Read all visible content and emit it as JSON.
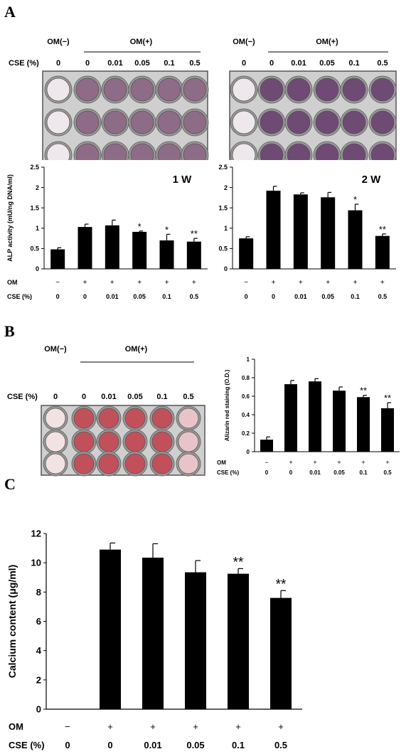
{
  "panels": {
    "a": "A",
    "b": "B",
    "c": "C"
  },
  "plate_header": {
    "om_minus": "OM(−)",
    "om_plus": "OM(+)",
    "cse_label": "CSE (%)",
    "cse_values": [
      "0",
      "0",
      "0.01",
      "0.05",
      "0.1",
      "0.5"
    ]
  },
  "plates": {
    "alp_1w_color": "#8e6b86",
    "alp_2w_color": "#6e4a74",
    "alizarin_color": "#c2505a",
    "control_color": "#eee8ec"
  },
  "chart_data": [
    {
      "type": "bar",
      "panel": "A",
      "title": "1 W",
      "ylabel": "ALP activity (mU/ng DNA/ml)",
      "xlabel": "",
      "ylim": [
        0,
        2.5
      ],
      "yticks": [
        "0",
        "0.5",
        "1",
        "1.5",
        "2",
        "2.5"
      ],
      "categories": [
        "0",
        "0",
        "0.01",
        "0.05",
        "0.1",
        "0.5"
      ],
      "om": [
        "−",
        "+",
        "+",
        "+",
        "+",
        "+"
      ],
      "row_labels": [
        "OM",
        "CSE (%)"
      ],
      "values": [
        0.48,
        1.03,
        1.07,
        0.91,
        0.7,
        0.67
      ],
      "errors": [
        0.04,
        0.07,
        0.13,
        0.02,
        0.15,
        0.08
      ],
      "annotations": [
        "",
        "",
        "",
        "*",
        "*",
        "**"
      ],
      "grid": false
    },
    {
      "type": "bar",
      "panel": "A",
      "title": "2 W",
      "ylabel": "",
      "xlabel": "",
      "ylim": [
        0,
        2.5
      ],
      "yticks": [
        "0",
        "0.5",
        "1",
        "1.5",
        "2",
        "2.5"
      ],
      "categories": [
        "0",
        "0",
        "0.01",
        "0.05",
        "0.1",
        "0.5"
      ],
      "om": [
        "−",
        "+",
        "+",
        "+",
        "+",
        "+"
      ],
      "row_labels": [
        "OM",
        "CSE (%)"
      ],
      "values": [
        0.75,
        1.92,
        1.83,
        1.76,
        1.44,
        0.81
      ],
      "errors": [
        0.04,
        0.11,
        0.04,
        0.12,
        0.15,
        0.05
      ],
      "annotations": [
        "",
        "",
        "",
        "",
        "*",
        "**"
      ],
      "grid": false
    },
    {
      "type": "bar",
      "panel": "B",
      "title": "",
      "ylabel": "Alizarin red staining (O.D.)",
      "xlabel": "",
      "ylim": [
        0,
        1
      ],
      "yticks": [
        "0",
        "0.2",
        "0.4",
        "0.6",
        "0.8",
        "1"
      ],
      "categories": [
        "0",
        "0",
        "0.01",
        "0.05",
        "0.1",
        "0.5"
      ],
      "om": [
        "−",
        "+",
        "+",
        "+",
        "+",
        "+"
      ],
      "row_labels": [
        "OM",
        "CSE (%)"
      ],
      "values": [
        0.13,
        0.73,
        0.76,
        0.66,
        0.59,
        0.47
      ],
      "errors": [
        0.03,
        0.04,
        0.03,
        0.04,
        0.02,
        0.06
      ],
      "annotations": [
        "",
        "",
        "",
        "",
        "**",
        "**"
      ],
      "grid": false
    },
    {
      "type": "bar",
      "panel": "C",
      "title": "",
      "ylabel": "Calcium content (μg/ml)",
      "xlabel": "",
      "ylim": [
        0,
        12
      ],
      "yticks": [
        "0",
        "2",
        "4",
        "6",
        "8",
        "10",
        "12"
      ],
      "categories": [
        "0",
        "0",
        "0.01",
        "0.05",
        "0.1",
        "0.5"
      ],
      "om": [
        "−",
        "+",
        "+",
        "+",
        "+",
        "+"
      ],
      "row_labels": [
        "OM",
        "CSE (%)"
      ],
      "values": [
        0,
        10.9,
        10.35,
        9.35,
        9.25,
        7.6
      ],
      "errors": [
        0,
        0.45,
        0.95,
        0.8,
        0.35,
        0.5
      ],
      "annotations": [
        "",
        "",
        "",
        "",
        "**",
        "**"
      ],
      "grid": false
    }
  ]
}
